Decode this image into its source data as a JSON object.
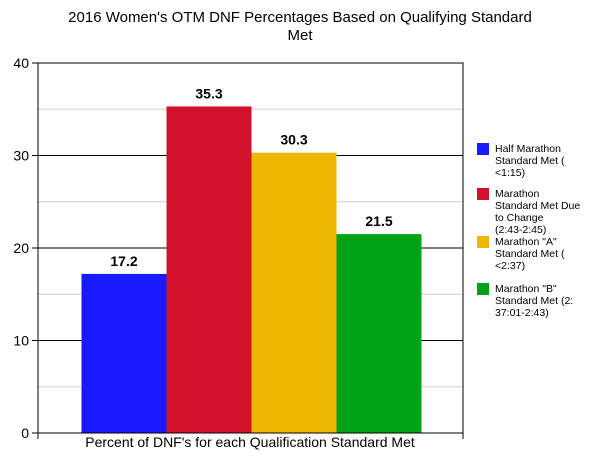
{
  "chart_data": {
    "type": "bar",
    "title": "2016 Women's OTM DNF Percentages Based on Qualifying Standard Met",
    "xlabel": "Percent of DNF's for each Qualification Standard Met",
    "ylabel": "",
    "ylim": [
      0,
      40
    ],
    "yticks": [
      "0",
      "10",
      "20",
      "30",
      "40"
    ],
    "grid": true,
    "legend_position": "right",
    "series": [
      {
        "name": "Half Marathon Standard Met ( <1:15)",
        "value": 17.2,
        "label": "17.2",
        "color": "#1a1aff"
      },
      {
        "name": "Marathon Standard Met Due to Change (2:43-2:45)",
        "value": 35.3,
        "label": "35.3",
        "color": "#d2112d"
      },
      {
        "name": "Marathon \"A\" Standard Met ( <2:37)",
        "value": 30.3,
        "label": "30.3",
        "color": "#eeb800"
      },
      {
        "name": "Marathon \"B\" Standard Met (2: 37:01-2:43)",
        "value": 21.5,
        "label": "21.5",
        "color": "#00a316"
      }
    ]
  }
}
